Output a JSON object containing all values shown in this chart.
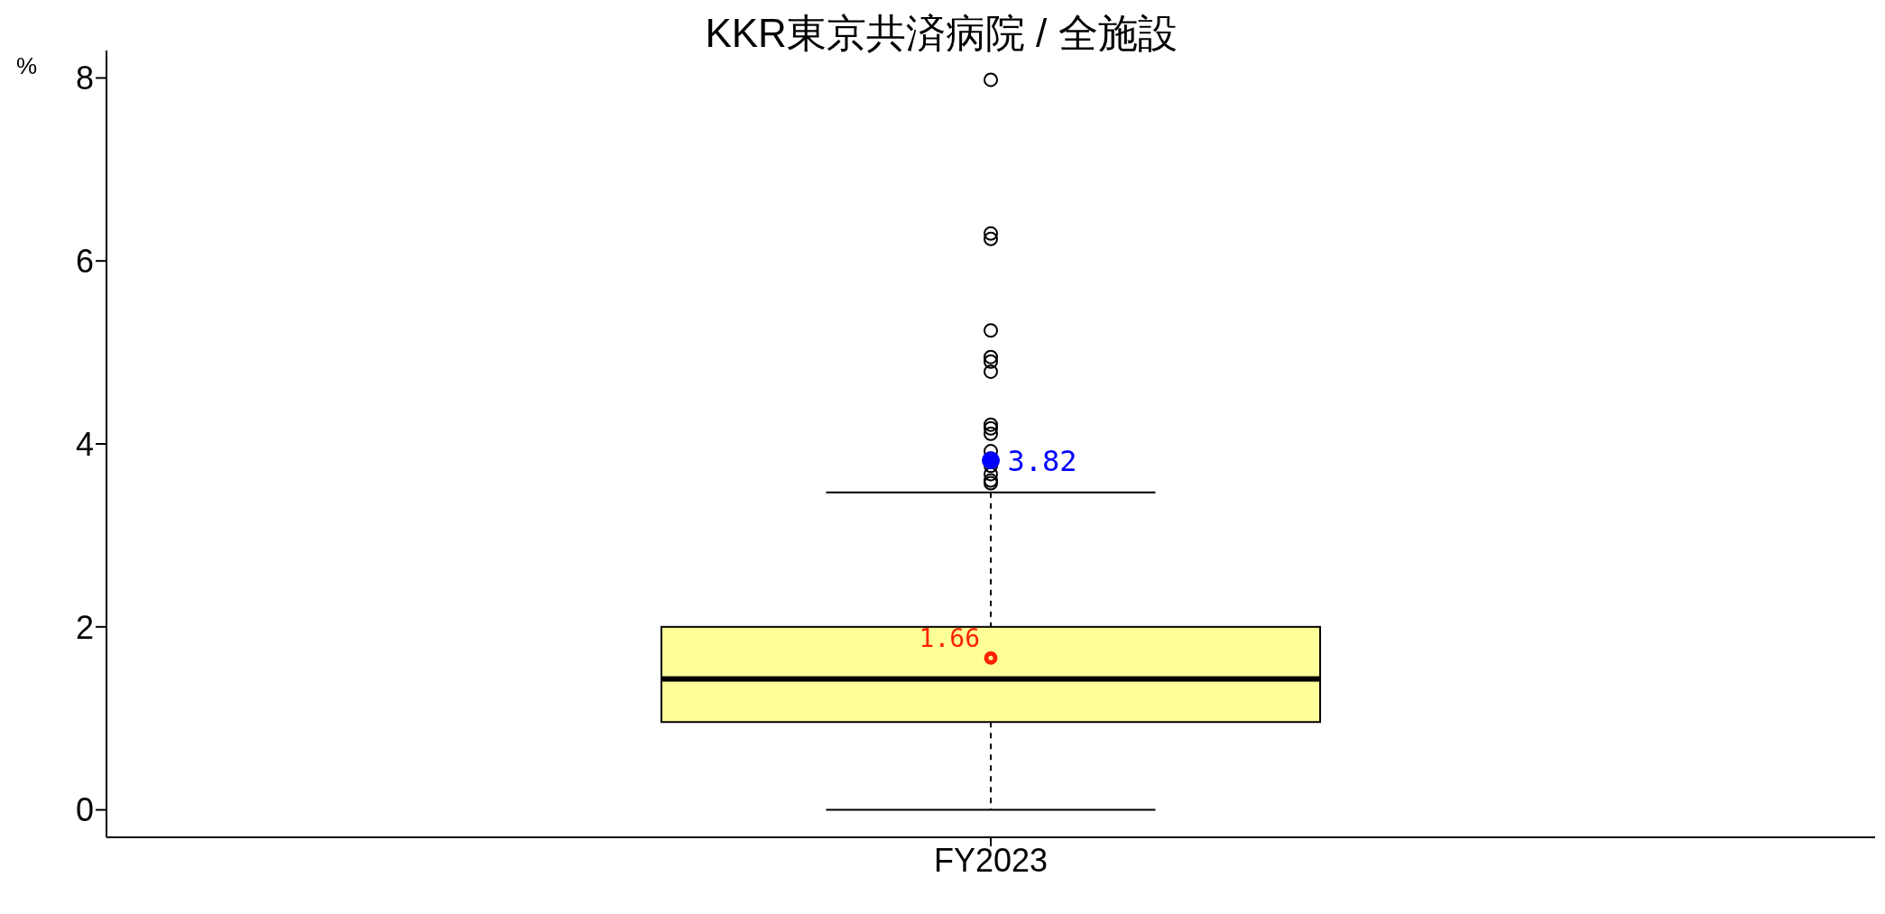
{
  "chart_data": {
    "type": "box",
    "title": "KKR東京共済病院 / 全施設",
    "ylabel": "%",
    "categories": [
      "FY2023"
    ],
    "boxes": [
      {
        "low": 0,
        "q1": 0.96,
        "median": 1.43,
        "q3": 2.0,
        "high": 3.47,
        "mean": 1.66,
        "outliers": [
          7.98,
          6.3,
          6.24,
          5.24,
          4.95,
          4.9,
          4.79,
          4.21,
          4.17,
          4.11,
          3.92,
          3.84,
          3.76,
          3.67,
          3.6,
          3.57
        ]
      }
    ],
    "color": "#ffff99",
    "series": [
      {
        "type": "scatter",
        "x": [
          "FY2023"
        ],
        "values": [
          3.82
        ],
        "color": "#0000ff",
        "value_labels": [
          "3.82"
        ]
      }
    ],
    "annotations": [
      "1.66"
    ],
    "ylim": [
      -0.3,
      8.3
    ],
    "yticks": [
      0,
      2,
      4,
      6,
      8
    ]
  }
}
